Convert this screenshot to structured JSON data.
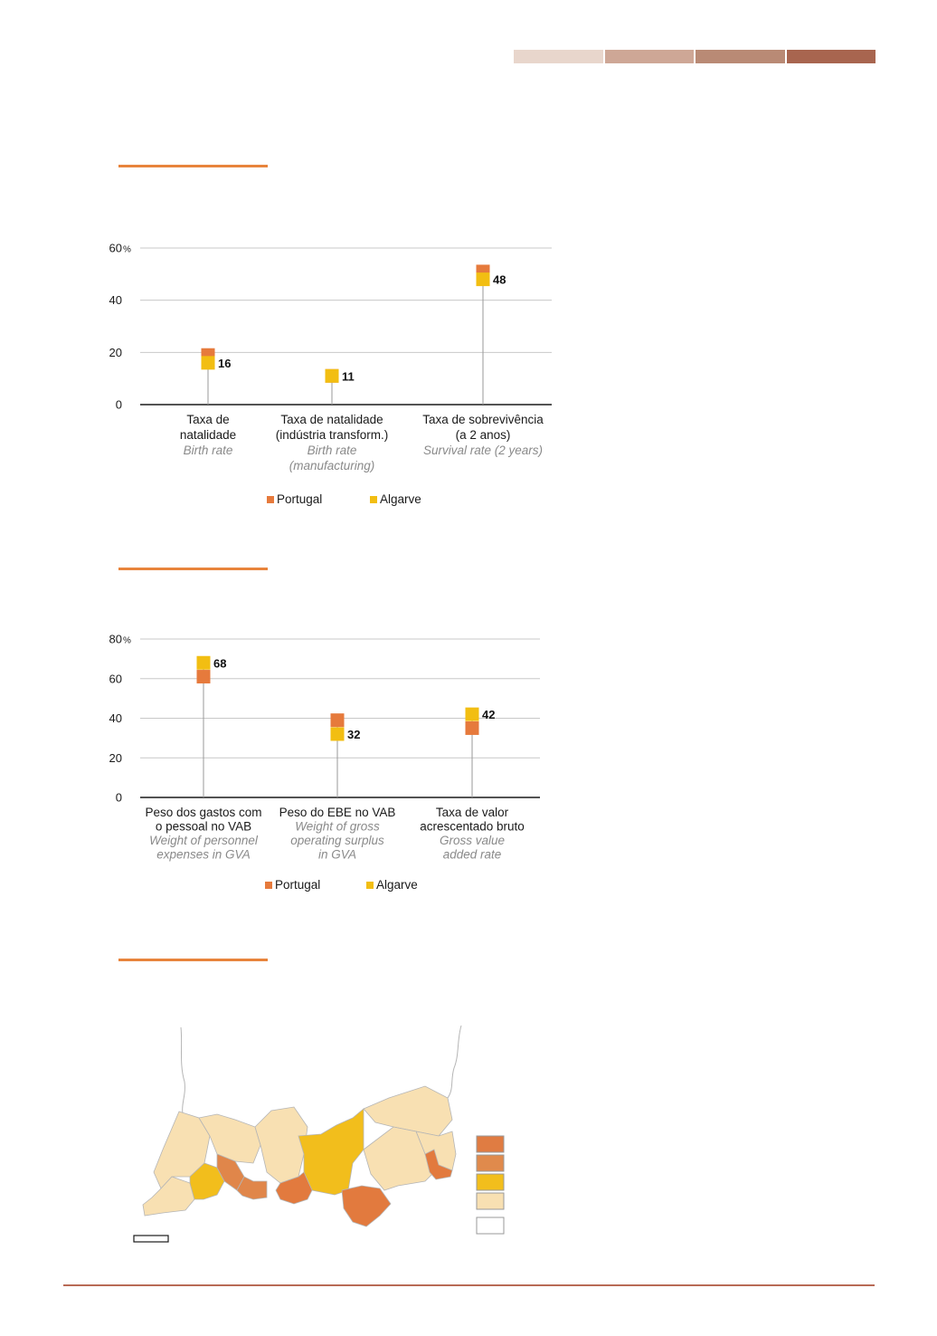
{
  "header": {
    "tab_colors": [
      "#e8d6cc",
      "#cea796",
      "#b98a75",
      "#a8654f"
    ]
  },
  "colors": {
    "portugal": "#e67a3c",
    "algarve": "#f2be12",
    "accent_rule": "#e8843c",
    "footer_line": "#b86a55",
    "grid": "#c8c8c8",
    "stem": "#999999"
  },
  "chart_data": [
    {
      "type": "scatter",
      "ylim": [
        0,
        60
      ],
      "yticks": [
        0,
        20,
        40,
        60
      ],
      "yunit": "%",
      "categories": [
        {
          "pt": [
            "Taxa de",
            "natalidade"
          ],
          "en": [
            "Birth rate"
          ]
        },
        {
          "pt": [
            "Taxa de natalidade",
            "(indústria transform.)"
          ],
          "en": [
            "Birth rate",
            "(manufacturing)"
          ]
        },
        {
          "pt": [
            "Taxa de sobrevivência",
            "(a 2 anos)"
          ],
          "en": [
            "Survival rate (2 years)"
          ]
        }
      ],
      "series": [
        {
          "name": "Portugal",
          "values": [
            19,
            11,
            51
          ]
        },
        {
          "name": "Algarve",
          "values": [
            16,
            11,
            48
          ]
        }
      ],
      "labels": [
        "16",
        "11",
        "48"
      ],
      "legend": [
        "Portugal",
        "Algarve"
      ]
    },
    {
      "type": "scatter",
      "ylim": [
        0,
        80
      ],
      "yticks": [
        0,
        20,
        40,
        60,
        80
      ],
      "yunit": "%",
      "categories": [
        {
          "pt": [
            "Peso dos gastos com",
            "o pessoal no VAB"
          ],
          "en": [
            "Weight of personnel",
            "expenses in GVA"
          ]
        },
        {
          "pt": [
            "Peso do EBE no VAB"
          ],
          "en": [
            "Weight of gross",
            "operating surplus",
            "in GVA"
          ]
        },
        {
          "pt": [
            "Taxa de valor",
            "acrescentado bruto"
          ],
          "en": [
            "Gross value",
            "added rate"
          ]
        }
      ],
      "series": [
        {
          "name": "Portugal",
          "values": [
            61,
            39,
            35
          ]
        },
        {
          "name": "Algarve",
          "values": [
            68,
            32,
            42
          ]
        }
      ],
      "labels": [
        "68",
        "32",
        "42"
      ],
      "legend": [
        "Portugal",
        "Algarve"
      ]
    }
  ],
  "map": {
    "legend_colors": [
      "#e07c42",
      "#e08a4c",
      "#f2be1c",
      "#f8e0b2",
      "#ffffff"
    ],
    "region_fills": {
      "pale": "#f8e0b2",
      "yellow": "#f2be1c",
      "orange": "#e0864a",
      "dark_orange": "#e27a3e"
    }
  }
}
